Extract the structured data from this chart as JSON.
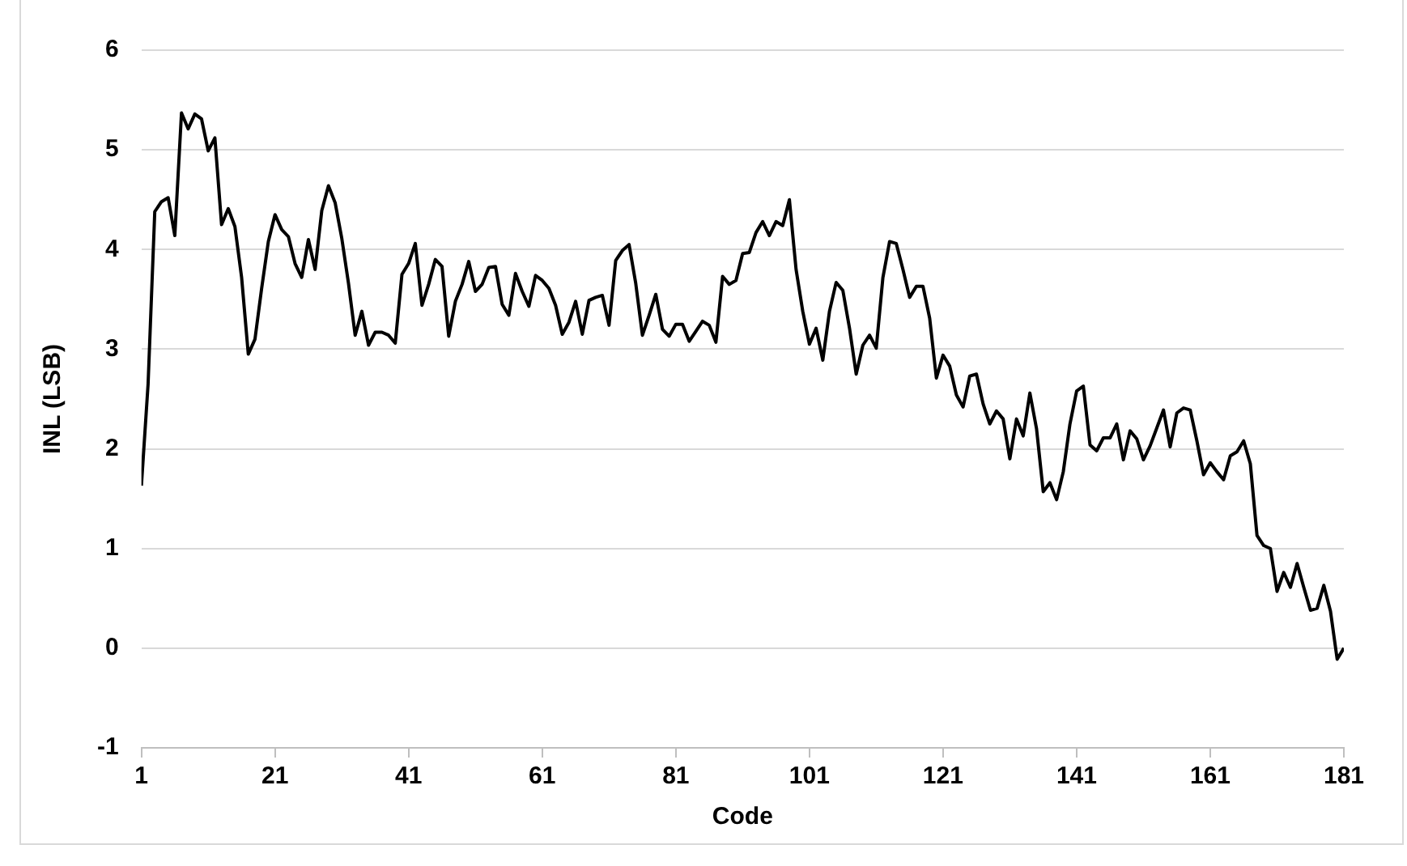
{
  "chart_data": {
    "type": "line",
    "xlabel": "Code",
    "ylabel": "INL (LSB)",
    "x": [
      1,
      2,
      3,
      4,
      5,
      6,
      7,
      8,
      9,
      10,
      11,
      12,
      13,
      14,
      15,
      16,
      17,
      18,
      19,
      20,
      21,
      22,
      23,
      24,
      25,
      26,
      27,
      28,
      29,
      30,
      31,
      32,
      33,
      34,
      35,
      36,
      37,
      38,
      39,
      40,
      41,
      42,
      43,
      44,
      45,
      46,
      47,
      48,
      49,
      50,
      51,
      52,
      53,
      54,
      55,
      56,
      57,
      58,
      59,
      60,
      61,
      62,
      63,
      64,
      65,
      66,
      67,
      68,
      69,
      70,
      71,
      72,
      73,
      74,
      75,
      76,
      77,
      78,
      79,
      80,
      81,
      82,
      83,
      84,
      85,
      86,
      87,
      88,
      89,
      90,
      91,
      92,
      93,
      94,
      95,
      96,
      97,
      98,
      99,
      100,
      101,
      102,
      103,
      104,
      105,
      106,
      107,
      108,
      109,
      110,
      111,
      112,
      113,
      114,
      115,
      116,
      117,
      118,
      119,
      120,
      121,
      122,
      123,
      124,
      125,
      126,
      127,
      128,
      129,
      130,
      131,
      132,
      133,
      134,
      135,
      136,
      137,
      138,
      139,
      140,
      141,
      142,
      143,
      144,
      145,
      146,
      147,
      148,
      149,
      150,
      151,
      152,
      153,
      154,
      155,
      156,
      157,
      158,
      159,
      160,
      161,
      162,
      163,
      164,
      165,
      166,
      167,
      168,
      169,
      170,
      171,
      172,
      173,
      174,
      175,
      176,
      177,
      178,
      179,
      180,
      181
    ],
    "series": [
      {
        "color": "#000000",
        "values": [
          1.63,
          2.65,
          4.38,
          4.48,
          4.52,
          4.14,
          5.37,
          5.21,
          5.36,
          5.31,
          4.99,
          5.12,
          4.25,
          4.41,
          4.23,
          3.72,
          2.95,
          3.1,
          3.61,
          4.08,
          4.35,
          4.2,
          4.13,
          3.86,
          3.72,
          4.1,
          3.8,
          4.39,
          4.64,
          4.47,
          4.11,
          3.66,
          3.14,
          3.38,
          3.04,
          3.17,
          3.17,
          3.14,
          3.06,
          3.75,
          3.86,
          4.06,
          3.44,
          3.65,
          3.9,
          3.83,
          3.13,
          3.48,
          3.65,
          3.88,
          3.58,
          3.65,
          3.82,
          3.83,
          3.45,
          3.34,
          3.76,
          3.58,
          3.43,
          3.74,
          3.69,
          3.61,
          3.44,
          3.15,
          3.27,
          3.48,
          3.15,
          3.49,
          3.52,
          3.54,
          3.24,
          3.89,
          3.99,
          4.05,
          3.66,
          3.14,
          3.34,
          3.55,
          3.2,
          3.13,
          3.25,
          3.25,
          3.08,
          3.18,
          3.28,
          3.24,
          3.07,
          3.73,
          3.65,
          3.69,
          3.96,
          3.97,
          4.17,
          4.28,
          4.14,
          4.28,
          4.24,
          4.5,
          3.8,
          3.38,
          3.05,
          3.21,
          2.89,
          3.38,
          3.67,
          3.59,
          3.21,
          2.75,
          3.04,
          3.14,
          3.01,
          3.72,
          4.08,
          4.06,
          3.8,
          3.52,
          3.63,
          3.63,
          3.31,
          2.71,
          2.94,
          2.83,
          2.54,
          2.42,
          2.73,
          2.75,
          2.45,
          2.25,
          2.38,
          2.3,
          1.9,
          2.3,
          2.13,
          2.56,
          2.2,
          1.57,
          1.66,
          1.49,
          1.77,
          2.25,
          2.58,
          2.63,
          2.04,
          1.98,
          2.11,
          2.11,
          2.25,
          1.89,
          2.18,
          2.1,
          1.89,
          2.03,
          2.21,
          2.39,
          2.02,
          2.36,
          2.41,
          2.39,
          2.08,
          1.74,
          1.86,
          1.77,
          1.69,
          1.93,
          1.97,
          2.08,
          1.85,
          1.13,
          1.03,
          1.0,
          0.57,
          0.76,
          0.61,
          0.85,
          0.61,
          0.38,
          0.4,
          0.63,
          0.37,
          -0.11,
          0.0
        ]
      }
    ],
    "xlim": [
      1,
      181
    ],
    "xticks": [
      1,
      21,
      41,
      61,
      81,
      101,
      121,
      141,
      161,
      181
    ],
    "ylim": [
      -1,
      6
    ],
    "yticks": [
      -1,
      0,
      1,
      2,
      3,
      4,
      5,
      6
    ],
    "grid": "y",
    "legend": false,
    "marker": "none",
    "line_style": "solid"
  }
}
